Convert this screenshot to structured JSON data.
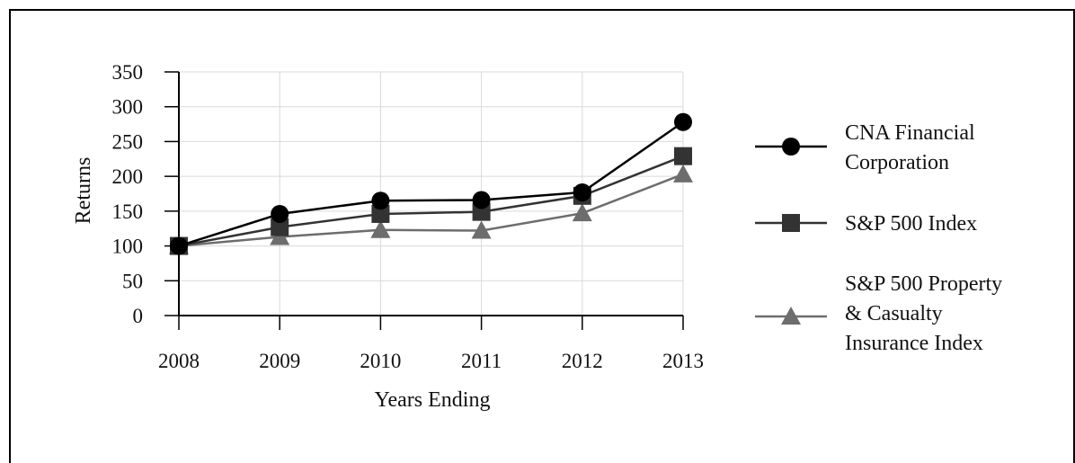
{
  "chart_data": {
    "type": "line",
    "xlabel": "Years Ending",
    "ylabel": "Returns",
    "categories": [
      "2008",
      "2009",
      "2010",
      "2011",
      "2012",
      "2013"
    ],
    "ylim": [
      0,
      350
    ],
    "yticks": [
      0,
      50,
      100,
      150,
      200,
      250,
      300,
      350
    ],
    "grid": true,
    "legend_position": "right",
    "series": [
      {
        "name_lines": [
          "CNA Financial",
          "Corporation"
        ],
        "values": [
          100,
          146,
          165,
          166,
          177,
          278
        ],
        "marker": "circle",
        "color": "#000000"
      },
      {
        "name_lines": [
          "S&P 500 Index"
        ],
        "values": [
          100,
          127,
          146,
          149,
          172,
          229
        ],
        "marker": "square",
        "color": "#333333"
      },
      {
        "name_lines": [
          "S&P 500 Property",
          "& Casualty",
          "Insurance Index"
        ],
        "values": [
          100,
          113,
          123,
          122,
          147,
          203
        ],
        "marker": "triangle",
        "color": "#6d6d6d"
      }
    ]
  }
}
